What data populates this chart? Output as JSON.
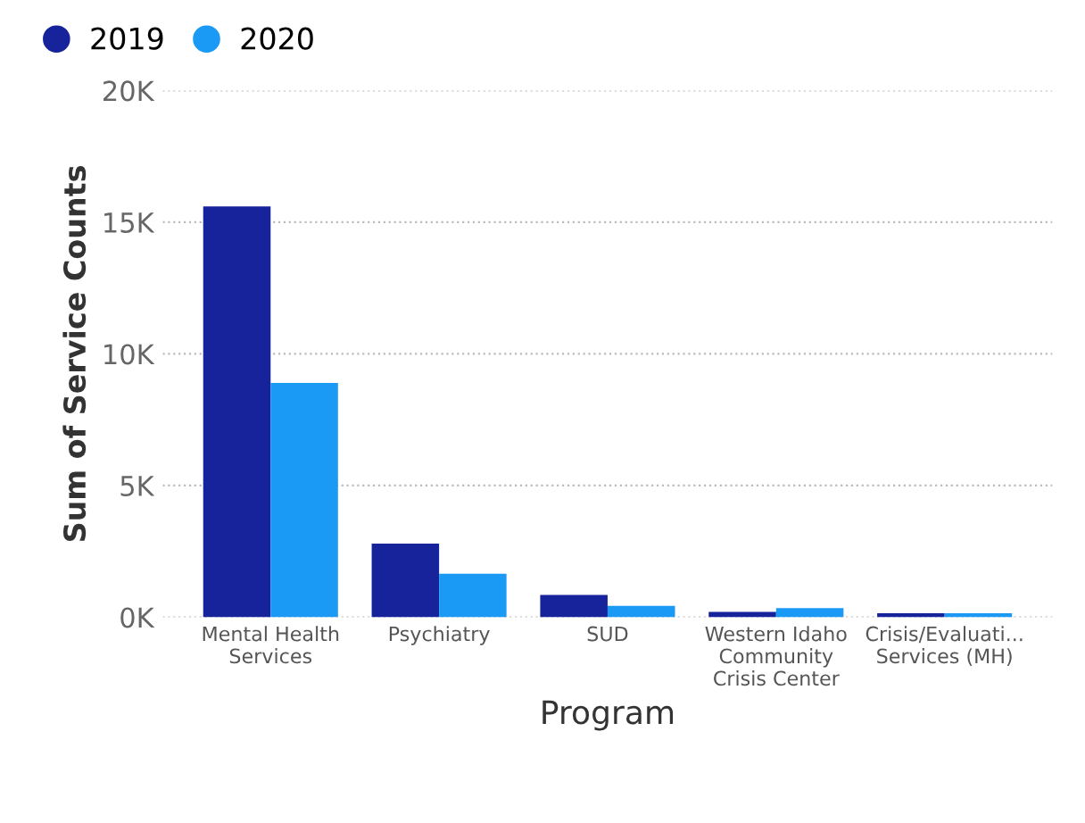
{
  "chart_data": {
    "type": "bar",
    "xlabel": "Program",
    "ylabel": "Sum of Service Counts",
    "categories": [
      "Mental Health\nServices",
      "Psychiatry",
      "SUD",
      "Western Idaho\nCommunity\nCrisis Center",
      "Crisis/Evaluati...\nServices (MH)"
    ],
    "series": [
      {
        "name": "2019",
        "color": "#16239a",
        "values": [
          15600,
          2800,
          850,
          200,
          150
        ]
      },
      {
        "name": "2020",
        "color": "#1a9af5",
        "values": [
          8900,
          1650,
          430,
          350,
          150
        ]
      }
    ],
    "ylim": [
      0,
      20000
    ],
    "yticks": [
      {
        "value": 0,
        "label": "0K"
      },
      {
        "value": 5000,
        "label": "5K"
      },
      {
        "value": 10000,
        "label": "10K"
      },
      {
        "value": 15000,
        "label": "15K"
      },
      {
        "value": 20000,
        "label": "20K"
      }
    ],
    "grid": "y",
    "legend": "top left"
  }
}
